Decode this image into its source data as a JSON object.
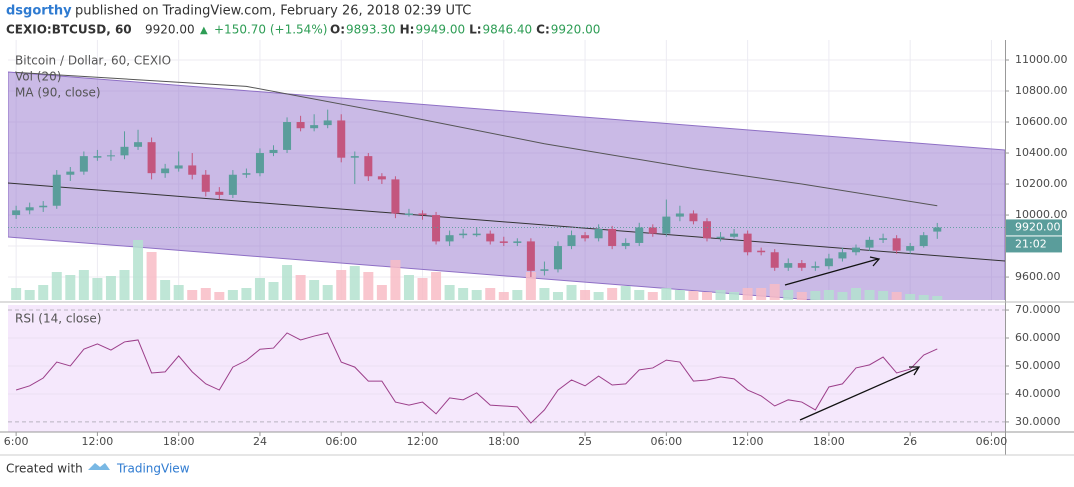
{
  "header": {
    "author": "dsgorthy",
    "published": "published on TradingView.com, February 26, 2018 02:39 UTC",
    "symbol": "CEXIO:BTCUSD, 60",
    "last": "9920.00",
    "change": "+150.70 (+1.54%)",
    "ohlc": [
      {
        "k": "O:",
        "v": "9893.30"
      },
      {
        "k": "H:",
        "v": "9949.00"
      },
      {
        "k": "L:",
        "v": "9846.40"
      },
      {
        "k": "C:",
        "v": "9920.00"
      }
    ]
  },
  "chart_data": {
    "type": "candlestick",
    "legend": [
      "Bitcoin / Dollar, 60, CEXIO",
      "Vol (20)",
      "MA (90, close)"
    ],
    "up_color": "#5a9d9b",
    "down_color": "#c3567e",
    "up_volume_color": "#b4e2cf",
    "down_volume_color": "#f8bcc6",
    "ylim": [
      9452,
      11129
    ],
    "yticks": [
      {
        "value": 9600,
        "label": "9600.00"
      },
      {
        "value": 9800,
        "label": "9800.00"
      },
      {
        "value": 10000,
        "label": "10000.00"
      },
      {
        "value": 10200,
        "label": "10200.00"
      },
      {
        "value": 10400,
        "label": "10400.00"
      },
      {
        "value": 10600,
        "label": "10600.00"
      },
      {
        "value": 10800,
        "label": "10800.00"
      },
      {
        "value": 11000,
        "label": "11000.00"
      }
    ],
    "xlim": [
      -0.6,
      73
    ],
    "xticks": [
      {
        "value": 0,
        "label": "6:00"
      },
      {
        "value": 6,
        "label": "12:00"
      },
      {
        "value": 12,
        "label": "18:00"
      },
      {
        "value": 18,
        "label": "24"
      },
      {
        "value": 24,
        "label": "06:00"
      },
      {
        "value": 30,
        "label": "12:00"
      },
      {
        "value": 36,
        "label": "18:00"
      },
      {
        "value": 42,
        "label": "25"
      },
      {
        "value": 48,
        "label": "06:00"
      },
      {
        "value": 54,
        "label": "12:00"
      },
      {
        "value": 60,
        "label": "18:00"
      },
      {
        "value": 66,
        "label": "26"
      },
      {
        "value": 72,
        "label": "06:00"
      }
    ],
    "last_price_label": "9920.00",
    "countdown": "21:02",
    "ohlc": [
      [
        10000,
        10060,
        9975,
        10030
      ],
      [
        10030,
        10080,
        10005,
        10050
      ],
      [
        10050,
        10090,
        10020,
        10060
      ],
      [
        10060,
        10290,
        10040,
        10260
      ],
      [
        10260,
        10310,
        10220,
        10280
      ],
      [
        10280,
        10410,
        10260,
        10380
      ],
      [
        10370,
        10420,
        10350,
        10380
      ],
      [
        10380,
        10420,
        10350,
        10385
      ],
      [
        10385,
        10540,
        10360,
        10440
      ],
      [
        10440,
        10550,
        10420,
        10470
      ],
      [
        10470,
        10500,
        10230,
        10270
      ],
      [
        10270,
        10330,
        10240,
        10300
      ],
      [
        10300,
        10410,
        10280,
        10320
      ],
      [
        10320,
        10400,
        10230,
        10260
      ],
      [
        10260,
        10290,
        10120,
        10150
      ],
      [
        10150,
        10180,
        10100,
        10130
      ],
      [
        10130,
        10290,
        10110,
        10260
      ],
      [
        10260,
        10300,
        10240,
        10270
      ],
      [
        10270,
        10430,
        10250,
        10400
      ],
      [
        10400,
        10450,
        10380,
        10420
      ],
      [
        10420,
        10630,
        10400,
        10600
      ],
      [
        10600,
        10640,
        10540,
        10560
      ],
      [
        10560,
        10650,
        10540,
        10580
      ],
      [
        10580,
        10680,
        10560,
        10610
      ],
      [
        10610,
        10650,
        10340,
        10370
      ],
      [
        10370,
        10410,
        10200,
        10380
      ],
      [
        10380,
        10400,
        10220,
        10250
      ],
      [
        10250,
        10270,
        10200,
        10230
      ],
      [
        10230,
        10250,
        9980,
        10010
      ],
      [
        10000,
        10040,
        9990,
        10010
      ],
      [
        10010,
        10030,
        9970,
        10000
      ],
      [
        10000,
        10020,
        9810,
        9830
      ],
      [
        9830,
        9900,
        9800,
        9870
      ],
      [
        9870,
        9910,
        9850,
        9880
      ],
      [
        9870,
        9920,
        9860,
        9880
      ],
      [
        9880,
        9900,
        9810,
        9830
      ],
      [
        9830,
        9860,
        9800,
        9820
      ],
      [
        9820,
        9850,
        9800,
        9830
      ],
      [
        9830,
        9850,
        9600,
        9640
      ],
      [
        9640,
        9700,
        9610,
        9650
      ],
      [
        9650,
        9830,
        9630,
        9800
      ],
      [
        9800,
        9900,
        9780,
        9870
      ],
      [
        9870,
        9890,
        9830,
        9850
      ],
      [
        9850,
        9940,
        9830,
        9910
      ],
      [
        9910,
        9930,
        9780,
        9800
      ],
      [
        9800,
        9850,
        9780,
        9820
      ],
      [
        9820,
        9950,
        9800,
        9920
      ],
      [
        9920,
        9940,
        9860,
        9880
      ],
      [
        9880,
        10100,
        9860,
        9990
      ],
      [
        9990,
        10060,
        9960,
        10010
      ],
      [
        10010,
        10030,
        9940,
        9960
      ],
      [
        9960,
        9980,
        9830,
        9850
      ],
      [
        9850,
        9890,
        9830,
        9860
      ],
      [
        9860,
        9910,
        9850,
        9880
      ],
      [
        9880,
        9900,
        9740,
        9760
      ],
      [
        9770,
        9790,
        9740,
        9760
      ],
      [
        9760,
        9780,
        9640,
        9660
      ],
      [
        9660,
        9720,
        9640,
        9690
      ],
      [
        9690,
        9710,
        9640,
        9660
      ],
      [
        9660,
        9700,
        9640,
        9670
      ],
      [
        9670,
        9750,
        9650,
        9720
      ],
      [
        9720,
        9790,
        9700,
        9760
      ],
      [
        9760,
        9810,
        9740,
        9790
      ],
      [
        9790,
        9860,
        9770,
        9840
      ],
      [
        9840,
        9880,
        9820,
        9850
      ],
      [
        9850,
        9870,
        9750,
        9770
      ],
      [
        9770,
        9820,
        9750,
        9800
      ],
      [
        9800,
        9890,
        9790,
        9870
      ],
      [
        9893.3,
        9949,
        9846.4,
        9920
      ]
    ],
    "volume_lim": [
      0,
      100
    ],
    "volume": [
      12,
      10,
      15,
      28,
      25,
      30,
      22,
      24,
      30,
      60,
      48,
      20,
      15,
      10,
      12,
      8,
      10,
      12,
      22,
      18,
      35,
      25,
      20,
      15,
      30,
      34,
      28,
      15,
      40,
      25,
      22,
      28,
      15,
      12,
      10,
      12,
      8,
      10,
      28,
      12,
      8,
      15,
      10,
      8,
      12,
      14,
      10,
      8,
      12,
      10,
      9,
      8,
      10,
      8,
      12,
      12,
      16,
      10,
      8,
      9,
      10,
      8,
      12,
      10,
      9,
      8,
      6,
      5,
      4
    ],
    "ma": {
      "color": "#555555",
      "x": [
        0,
        17,
        28,
        39,
        50,
        58,
        68
      ],
      "values": [
        10920,
        10830,
        10650,
        10460,
        10300,
        10200,
        10060
      ]
    },
    "rsi": {
      "title": "RSI (14, close)",
      "color": "#9c3f8a",
      "ylim": [
        26.4,
        71.8
      ],
      "yticks": [
        {
          "value": 30,
          "label": "30.0000"
        },
        {
          "value": 40,
          "label": "40.0000"
        },
        {
          "value": 50,
          "label": "50.0000"
        },
        {
          "value": 60,
          "label": "60.0000"
        },
        {
          "value": 70,
          "label": "70.0000"
        }
      ],
      "values": [
        41.4,
        42.9,
        45.7,
        51.4,
        50,
        56,
        57.9,
        55.7,
        58.6,
        59.3,
        47.5,
        47.9,
        53.6,
        47.9,
        43.6,
        41.4,
        49.6,
        52,
        56,
        56.4,
        61.8,
        59.3,
        60.7,
        61.8,
        51.4,
        49.6,
        44.6,
        44.6,
        37.1,
        36,
        37.1,
        32.9,
        38.6,
        37.9,
        40.4,
        36,
        35.7,
        35.4,
        29.6,
        34.3,
        41.4,
        45,
        42.9,
        46.4,
        43.2,
        43.6,
        48.6,
        49.3,
        52.1,
        51.4,
        44.6,
        45,
        46.1,
        45.4,
        41.4,
        39.3,
        35.7,
        37.9,
        37.1,
        34.3,
        42.5,
        43.6,
        49.3,
        50.4,
        53.2,
        47.5,
        48.9,
        53.9,
        56.1
      ]
    }
  },
  "footer": {
    "created": "Created with",
    "brand": "TradingView"
  }
}
